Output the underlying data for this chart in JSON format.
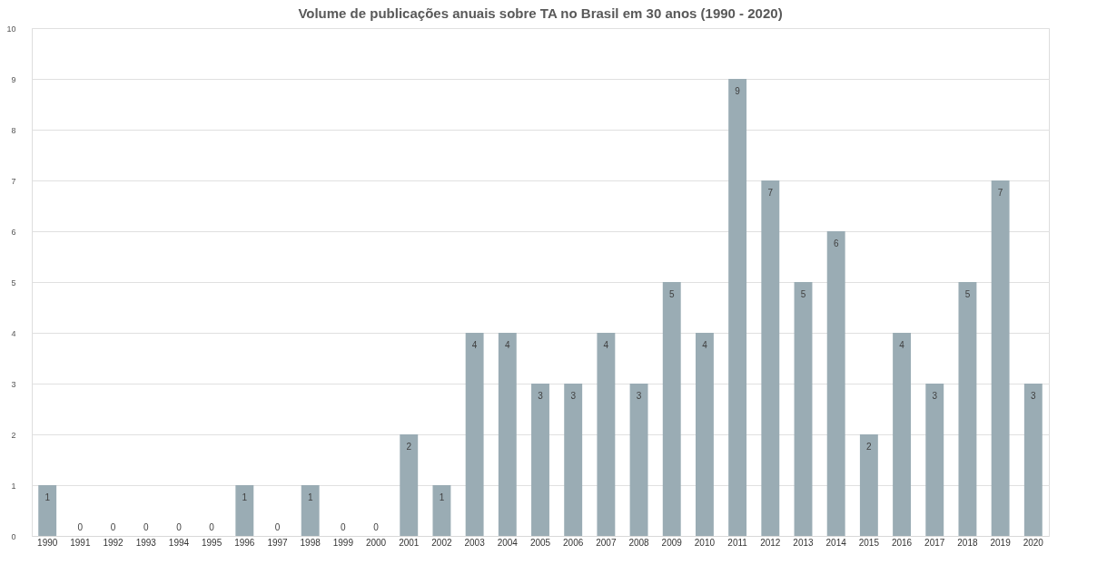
{
  "chart_data": {
    "type": "bar",
    "title": "Volume de publicações anuais sobre TA no Brasil em 30 anos (1990 - 2020)",
    "categories": [
      "1990",
      "1991",
      "1992",
      "1993",
      "1994",
      "1995",
      "1996",
      "1997",
      "1998",
      "1999",
      "2000",
      "2001",
      "2002",
      "2003",
      "2004",
      "2005",
      "2006",
      "2007",
      "2008",
      "2009",
      "2010",
      "2011",
      "2012",
      "2013",
      "2014",
      "2015",
      "2016",
      "2017",
      "2018",
      "2019",
      "2020"
    ],
    "values": [
      1,
      0,
      0,
      0,
      0,
      0,
      1,
      0,
      1,
      0,
      0,
      2,
      1,
      4,
      4,
      3,
      3,
      4,
      3,
      5,
      4,
      9,
      7,
      5,
      6,
      2,
      4,
      3,
      5,
      7,
      3
    ],
    "color": "#9aacb4",
    "ylim": [
      0,
      10
    ],
    "yticks": [
      0,
      1,
      2,
      3,
      4,
      5,
      6,
      7,
      8,
      9,
      10
    ],
    "grid": "y",
    "data_labels": true
  }
}
